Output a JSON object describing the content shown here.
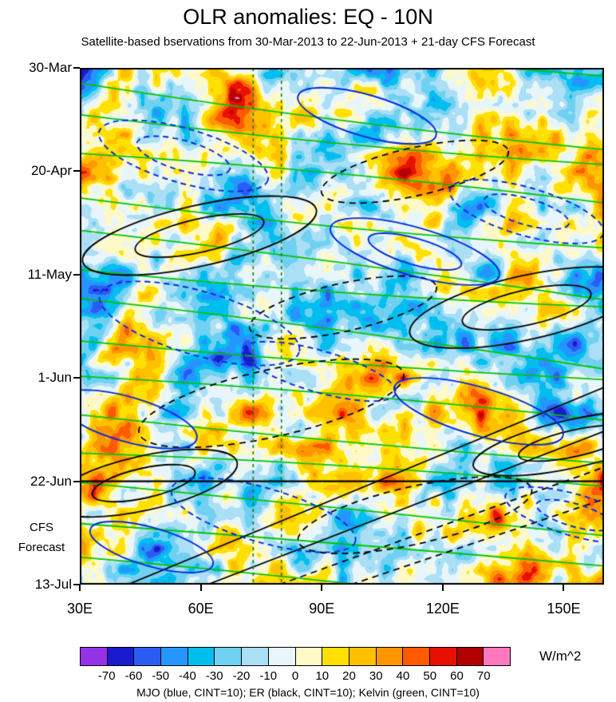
{
  "chart_data": {
    "type": "heatmap",
    "title": "OLR anomalies: EQ - 10N",
    "subtitle": "Satellite-based bservations from 30-Mar-2013 to 22-Jun-2013 + 21-day CFS Forecast",
    "x_axis": {
      "tick_labels": [
        "30E",
        "60E",
        "90E",
        "120E",
        "150E"
      ],
      "tick_lons": [
        30,
        60,
        90,
        120,
        150
      ],
      "lon_range": [
        30,
        160
      ]
    },
    "y_axis": {
      "tick_labels": [
        "30-Mar",
        "20-Apr",
        "11-May",
        "1-Jun",
        "22-Jun",
        "13-Jul"
      ],
      "tick_days": [
        0,
        21,
        42,
        63,
        84,
        105
      ],
      "day_range": [
        0,
        105
      ],
      "orientation": "time increases downward"
    },
    "forecast": {
      "divider_label": "22-Jun",
      "divider_day": 84,
      "label_line1": "CFS",
      "label_line2": "Forecast"
    },
    "colorbar": {
      "units": "W/m^2",
      "tick_values": [
        -70,
        -60,
        -50,
        -40,
        -30,
        -20,
        -10,
        0,
        10,
        20,
        30,
        40,
        50,
        60,
        70
      ],
      "colors": [
        "#9632e6",
        "#1a1ace",
        "#2b5cf2",
        "#2596ff",
        "#00bfee",
        "#6fd0f2",
        "#aadff5",
        "#e8f6fc",
        "#fff9c8",
        "#ffe000",
        "#ffc000",
        "#ff9600",
        "#ff5a00",
        "#e81000",
        "#b00000",
        "#ff78be"
      ]
    },
    "legend": "MJO (blue, CINT=10); ER (black, CINT=10); Kelvin (green, CINT=10)",
    "overlays": [
      {
        "name": "MJO",
        "color": "#0028e0",
        "cint": 10
      },
      {
        "name": "ER",
        "color": "#000000",
        "cint": 10
      },
      {
        "name": "Kelvin",
        "color": "#00c400",
        "cint": 10
      }
    ],
    "reference_lines": {
      "vertical_lons": [
        73,
        80
      ],
      "color": "#1e7a1e",
      "style": "dashed"
    }
  }
}
